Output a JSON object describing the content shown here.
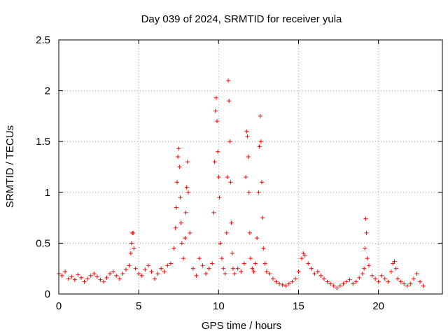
{
  "chart_data": {
    "type": "scatter",
    "title": "Day 039 of 2024, SRMTID for receiver yula",
    "xlabel": "GPS time / hours",
    "ylabel": "SRMTID / TECUs",
    "xlim": [
      0,
      24
    ],
    "ylim": [
      0,
      2.5
    ],
    "x_ticks": [
      0,
      5,
      10,
      15,
      20
    ],
    "x_tick_labels": [
      "0",
      "5",
      "10",
      "15",
      "20"
    ],
    "y_ticks": [
      0,
      0.5,
      1,
      1.5,
      2,
      2.5
    ],
    "y_tick_labels": [
      "0",
      "0.5",
      "1",
      "1.5",
      "2",
      "2.5"
    ],
    "grid": true,
    "marker": "plus",
    "color": "#ff0000",
    "series": [
      {
        "name": "SRMTID",
        "x": [
          0.0,
          0.2,
          0.4,
          0.6,
          0.8,
          1.0,
          1.2,
          1.4,
          1.6,
          1.8,
          2.0,
          2.2,
          2.4,
          2.6,
          2.8,
          3.0,
          3.2,
          3.4,
          3.6,
          3.8,
          4.0,
          4.2,
          4.4,
          4.5,
          4.55,
          4.6,
          4.65,
          4.7,
          4.8,
          5.0,
          5.2,
          5.4,
          5.6,
          5.8,
          6.0,
          6.2,
          6.4,
          6.6,
          6.8,
          7.0,
          7.2,
          7.3,
          7.35,
          7.4,
          7.45,
          7.5,
          7.55,
          7.6,
          7.65,
          7.7,
          7.8,
          7.9,
          7.95,
          8.0,
          8.05,
          8.1,
          8.2,
          8.4,
          8.6,
          8.8,
          9.0,
          9.2,
          9.4,
          9.6,
          9.7,
          9.75,
          9.8,
          9.85,
          9.9,
          9.95,
          10.0,
          10.05,
          10.1,
          10.2,
          10.3,
          10.4,
          10.5,
          10.55,
          10.6,
          10.65,
          10.7,
          10.75,
          10.8,
          10.85,
          10.9,
          11.0,
          11.2,
          11.4,
          11.6,
          11.7,
          11.75,
          11.8,
          11.85,
          11.9,
          11.95,
          12.0,
          12.1,
          12.2,
          12.3,
          12.4,
          12.5,
          12.55,
          12.6,
          12.65,
          12.7,
          12.75,
          12.8,
          12.9,
          13.0,
          13.2,
          13.4,
          13.6,
          13.8,
          14.0,
          14.2,
          14.4,
          14.6,
          14.8,
          15.0,
          15.2,
          15.3,
          15.4,
          15.6,
          15.8,
          16.0,
          16.2,
          16.4,
          16.6,
          16.8,
          17.0,
          17.2,
          17.4,
          17.6,
          17.8,
          18.0,
          18.2,
          18.4,
          18.6,
          18.8,
          19.0,
          19.1,
          19.15,
          19.2,
          19.25,
          19.3,
          19.4,
          19.6,
          19.8,
          20.0,
          20.2,
          20.4,
          20.6,
          20.8,
          20.9,
          21.0,
          21.1,
          21.2,
          21.4,
          21.6,
          21.8,
          22.0,
          22.2,
          22.4,
          22.6,
          22.8
        ],
        "y": [
          0.2,
          0.18,
          0.22,
          0.15,
          0.17,
          0.14,
          0.19,
          0.16,
          0.12,
          0.15,
          0.18,
          0.2,
          0.17,
          0.14,
          0.12,
          0.16,
          0.2,
          0.22,
          0.18,
          0.15,
          0.2,
          0.24,
          0.28,
          0.4,
          0.5,
          0.6,
          0.6,
          0.45,
          0.25,
          0.2,
          0.18,
          0.24,
          0.28,
          0.22,
          0.15,
          0.2,
          0.25,
          0.22,
          0.28,
          0.3,
          0.45,
          0.65,
          0.85,
          1.1,
          1.35,
          1.43,
          1.25,
          0.95,
          0.7,
          0.5,
          0.35,
          0.55,
          0.8,
          1.05,
          1.3,
          1.0,
          0.6,
          0.25,
          0.18,
          0.35,
          0.28,
          0.2,
          0.25,
          0.3,
          0.8,
          1.3,
          1.8,
          1.93,
          1.7,
          1.4,
          1.15,
          0.95,
          0.5,
          0.35,
          0.25,
          0.2,
          0.6,
          1.15,
          2.1,
          1.9,
          1.5,
          1.1,
          0.7,
          0.4,
          0.25,
          0.2,
          0.25,
          0.22,
          0.3,
          1.15,
          1.6,
          1.55,
          1.35,
          1.0,
          0.6,
          0.35,
          0.25,
          0.22,
          0.3,
          0.55,
          1.0,
          1.45,
          1.75,
          1.5,
          1.1,
          0.75,
          0.45,
          0.3,
          0.22,
          0.2,
          0.15,
          0.12,
          0.1,
          0.09,
          0.08,
          0.1,
          0.12,
          0.15,
          0.22,
          0.35,
          0.4,
          0.38,
          0.3,
          0.25,
          0.2,
          0.22,
          0.18,
          0.15,
          0.12,
          0.1,
          0.08,
          0.06,
          0.08,
          0.1,
          0.12,
          0.14,
          0.1,
          0.12,
          0.16,
          0.2,
          0.25,
          0.45,
          0.74,
          0.6,
          0.35,
          0.28,
          0.18,
          0.15,
          0.12,
          0.18,
          0.15,
          0.12,
          0.22,
          0.3,
          0.32,
          0.25,
          0.15,
          0.12,
          0.1,
          0.08,
          0.1,
          0.15,
          0.2,
          0.12,
          0.08
        ]
      }
    ]
  }
}
